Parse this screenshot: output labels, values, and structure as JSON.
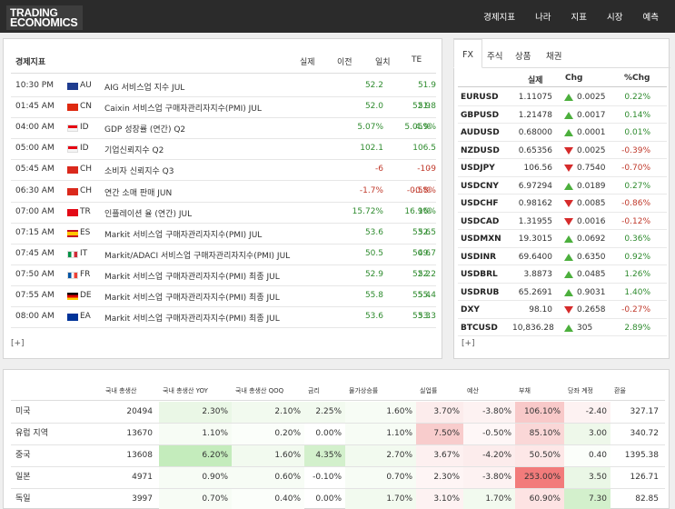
{
  "header": {
    "logo_line1": "TRADING",
    "logo_line2": "ECONOMICS",
    "nav": [
      "경제지표",
      "나라",
      "지표",
      "시장",
      "예측"
    ]
  },
  "indicators": {
    "headers": {
      "title": "경제지표",
      "actual": "실제",
      "previous": "이전",
      "consensus": "일치",
      "te": "TE"
    },
    "rows": [
      {
        "time": "10:30 PM",
        "country": "AU",
        "flag": "australia",
        "name": "AIG 서비스업 지수  JUL",
        "actual": "",
        "previous": "52.2",
        "consensus": "",
        "te": "51.9",
        "prev_c": "g",
        "cons_c": "g",
        "te_c": "g"
      },
      {
        "time": "01:45 AM",
        "country": "CN",
        "flag": "china",
        "name": "Caixin 서비스업 구매자관리자지수(PMI)  JUL",
        "actual": "",
        "previous": "52.0",
        "consensus": "52.9",
        "te": "51.8",
        "prev_c": "g",
        "cons_c": "g",
        "te_c": "g"
      },
      {
        "time": "04:00 AM",
        "country": "ID",
        "flag": "indonesia",
        "name": "GDP 성장률 (연간)  Q2",
        "actual": "",
        "previous": "5.07%",
        "consensus": "5.05%",
        "te": "4.9%",
        "prev_c": "g",
        "cons_c": "g",
        "te_c": "g"
      },
      {
        "time": "05:00 AM",
        "country": "ID",
        "flag": "indonesia",
        "name": "기업신뢰지수  Q2",
        "actual": "",
        "previous": "102.1",
        "consensus": "",
        "te": "106.5",
        "prev_c": "g",
        "cons_c": "g",
        "te_c": "g"
      },
      {
        "time": "05:45 AM",
        "country": "CH",
        "flag": "switzerland",
        "name": "소비자 신뢰지수  Q3",
        "actual": "",
        "previous": "-6",
        "consensus": "-10",
        "te": "-9",
        "prev_c": "r",
        "cons_c": "r",
        "te_c": "r"
      },
      {
        "time": "06:30 AM",
        "country": "CH",
        "flag": "switzerland",
        "name": "연간 소매 판매  JUN",
        "actual": "",
        "previous": "-1.7%",
        "consensus": "-0.5%",
        "te": "-0.8%",
        "prev_c": "r",
        "cons_c": "r",
        "te_c": "r"
      },
      {
        "time": "07:00 AM",
        "country": "TR",
        "flag": "turkey",
        "name": "인플레이션 율 (연간)  JUL",
        "actual": "",
        "previous": "15.72%",
        "consensus": "16.9%",
        "te": "16%",
        "prev_c": "g",
        "cons_c": "g",
        "te_c": "g"
      },
      {
        "time": "07:15 AM",
        "country": "ES",
        "flag": "spain",
        "name": "Markit 서비스업 구매자관리자지수(PMI)  JUL",
        "actual": "",
        "previous": "53.6",
        "consensus": "53.6",
        "te": "52.5",
        "prev_c": "g",
        "cons_c": "g",
        "te_c": "g"
      },
      {
        "time": "07:45 AM",
        "country": "IT",
        "flag": "italy",
        "name": "Markit/ADACI 서비스업 구매자관리자지수(PMI)  JUL",
        "actual": "",
        "previous": "50.5",
        "consensus": "50.6",
        "te": "49.7",
        "prev_c": "g",
        "cons_c": "g",
        "te_c": "g"
      },
      {
        "time": "07:50 AM",
        "country": "FR",
        "flag": "france",
        "name": "Markit 서비스업 구매자관리자지수(PMI) 최종  JUL",
        "actual": "",
        "previous": "52.9",
        "consensus": "52.2",
        "te": "52.2",
        "prev_c": "g",
        "cons_c": "g",
        "te_c": "g"
      },
      {
        "time": "07:55 AM",
        "country": "DE",
        "flag": "germany",
        "name": "Markit 서비스업 구매자관리자지수(PMI) 최종  JUL",
        "actual": "",
        "previous": "55.8",
        "consensus": "55.4",
        "te": "55.4",
        "prev_c": "g",
        "cons_c": "g",
        "te_c": "g"
      },
      {
        "time": "08:00 AM",
        "country": "EA",
        "flag": "euro-area",
        "name": "Markit 서비스업 구매자관리자지수(PMI) 최종  JUL",
        "actual": "",
        "previous": "53.6",
        "consensus": "53.3",
        "te": "53.3",
        "prev_c": "g",
        "cons_c": "g",
        "te_c": "g"
      }
    ],
    "more_label": "[+]"
  },
  "markets": {
    "tabs": [
      "FX",
      "주식",
      "상품",
      "채권"
    ],
    "active_tab": 0,
    "headers": {
      "actual": "실제",
      "chg": "Chg",
      "pct": "%Chg"
    },
    "rows": [
      {
        "symbol": "EURUSD",
        "price": "1.11075",
        "dir": "up",
        "chg": "0.0025",
        "pct": "0.22%"
      },
      {
        "symbol": "GBPUSD",
        "price": "1.21478",
        "dir": "up",
        "chg": "0.0017",
        "pct": "0.14%"
      },
      {
        "symbol": "AUDUSD",
        "price": "0.68000",
        "dir": "up",
        "chg": "0.0001",
        "pct": "0.01%"
      },
      {
        "symbol": "NZDUSD",
        "price": "0.65356",
        "dir": "down",
        "chg": "0.0025",
        "pct": "-0.39%"
      },
      {
        "symbol": "USDJPY",
        "price": "106.56",
        "dir": "down",
        "chg": "0.7540",
        "pct": "-0.70%"
      },
      {
        "symbol": "USDCNY",
        "price": "6.97294",
        "dir": "up",
        "chg": "0.0189",
        "pct": "0.27%"
      },
      {
        "symbol": "USDCHF",
        "price": "0.98162",
        "dir": "down",
        "chg": "0.0085",
        "pct": "-0.86%"
      },
      {
        "symbol": "USDCAD",
        "price": "1.31955",
        "dir": "down",
        "chg": "0.0016",
        "pct": "-0.12%"
      },
      {
        "symbol": "USDMXN",
        "price": "19.3015",
        "dir": "up",
        "chg": "0.0692",
        "pct": "0.36%"
      },
      {
        "symbol": "USDINR",
        "price": "69.6400",
        "dir": "up",
        "chg": "0.6350",
        "pct": "0.92%"
      },
      {
        "symbol": "USDBRL",
        "price": "3.8873",
        "dir": "up",
        "chg": "0.0485",
        "pct": "1.26%"
      },
      {
        "symbol": "USDRUB",
        "price": "65.2691",
        "dir": "up",
        "chg": "0.9031",
        "pct": "1.40%"
      },
      {
        "symbol": "DXY",
        "price": "98.10",
        "dir": "down",
        "chg": "0.2658",
        "pct": "-0.27%"
      },
      {
        "symbol": "BTCUSD",
        "price": "10,836.28",
        "dir": "up",
        "chg": "305",
        "pct": "2.89%"
      }
    ],
    "more_label": "[+]"
  },
  "summary": {
    "headers": [
      "국내 총생산",
      "국내 총생산 YOY",
      "국내 총생산 QOQ",
      "금리",
      "물가상승률",
      "실업률",
      "예산",
      "부채",
      "당좌 계정",
      "환율"
    ],
    "rows": [
      {
        "country": "미국",
        "cells": [
          "20494",
          "2.30%",
          "2.10%",
          "2.25%",
          "1.60%",
          "3.70%",
          "-3.80%",
          "106.10%",
          "-2.40",
          "327.17"
        ],
        "bg": [
          "",
          "#eaf7e6",
          "#f2faef",
          "#f2faef",
          "#f7fcf5",
          "#fcecec",
          "#fdf2f2",
          "#f8c9c9",
          "#fdf2f2",
          ""
        ]
      },
      {
        "country": "유럽 지역",
        "cells": [
          "13670",
          "1.10%",
          "0.20%",
          "0.00%",
          "1.10%",
          "7.50%",
          "-0.50%",
          "85.10%",
          "3.00",
          "340.72"
        ],
        "bg": [
          "",
          "#f7fcf5",
          "#fbfefa",
          "",
          "#f7fcf5",
          "#f8cccc",
          "#fef7f7",
          "#fad7d7",
          "#eef8ea",
          ""
        ]
      },
      {
        "country": "중국",
        "cells": [
          "13608",
          "6.20%",
          "1.60%",
          "4.35%",
          "2.70%",
          "3.67%",
          "-4.20%",
          "50.50%",
          "0.40",
          "1395.38"
        ],
        "bg": [
          "",
          "#c4ecbc",
          "#f2faef",
          "#d3f0cc",
          "#f2faef",
          "#fdf0f0",
          "#fcecec",
          "#fde7e7",
          "#fbfefa",
          ""
        ]
      },
      {
        "country": "일본",
        "cells": [
          "4971",
          "0.90%",
          "0.60%",
          "-0.10%",
          "0.70%",
          "2.30%",
          "-3.80%",
          "253.00%",
          "3.50",
          "126.71"
        ],
        "bg": [
          "",
          "#f7fcf5",
          "#f7fcf5",
          "",
          "#f7fcf5",
          "#fef5f5",
          "#fdf2f2",
          "#f27b7b",
          "#eaf7e6",
          ""
        ]
      },
      {
        "country": "독일",
        "cells": [
          "3997",
          "0.70%",
          "0.40%",
          "0.00%",
          "1.70%",
          "3.10%",
          "1.70%",
          "60.90%",
          "7.30",
          "82.85"
        ],
        "bg": [
          "",
          "#f7fcf5",
          "#fbfefa",
          "",
          "#f2faef",
          "#fdf2f2",
          "#f2faef",
          "#fde3e3",
          "#d3f0cc",
          ""
        ]
      }
    ]
  },
  "colors": {
    "header_bg": "#2b2b2b",
    "green": "#2e8b2e",
    "red": "#c0392b",
    "arrow_up": "#4caf3d",
    "arrow_down": "#d62b2b"
  }
}
